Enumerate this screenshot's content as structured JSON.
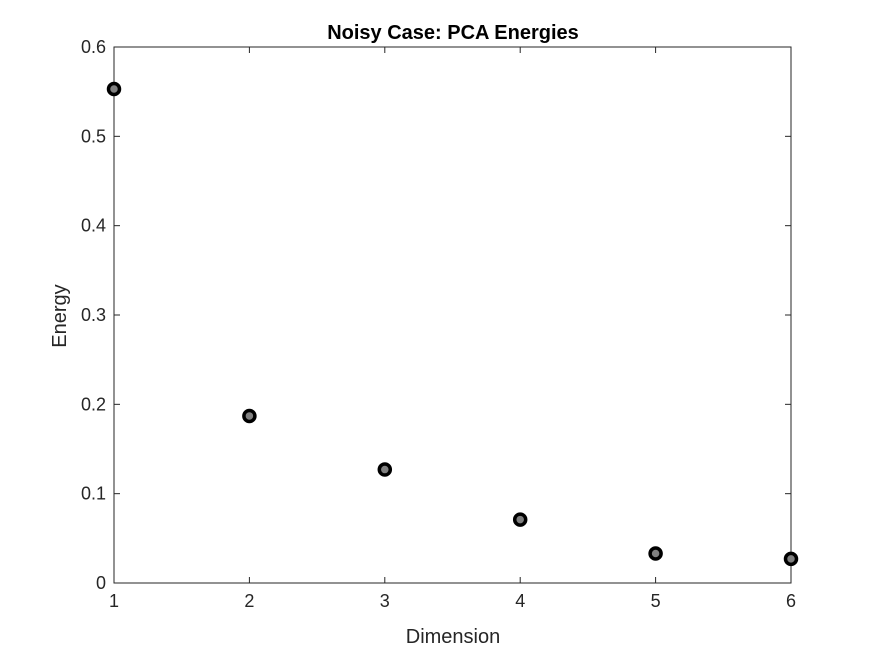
{
  "chart_data": {
    "type": "scatter",
    "title": "Noisy Case: PCA Energies",
    "xlabel": "Dimension",
    "ylabel": "Energy",
    "x": [
      1,
      2,
      3,
      4,
      5,
      6
    ],
    "y": [
      0.553,
      0.187,
      0.127,
      0.071,
      0.033,
      0.027
    ],
    "xlim": [
      1,
      6
    ],
    "ylim": [
      0,
      0.6
    ],
    "xticks": [
      1,
      2,
      3,
      4,
      5,
      6
    ],
    "yticks": [
      0,
      0.1,
      0.2,
      0.3,
      0.4,
      0.5,
      0.6
    ],
    "xtick_labels": [
      "1",
      "2",
      "3",
      "4",
      "5",
      "6"
    ],
    "ytick_labels": [
      "0",
      "0.1",
      "0.2",
      "0.3",
      "0.4",
      "0.5",
      "0.6"
    ],
    "grid": false,
    "box": true,
    "marker": {
      "shape": "circle",
      "edge_color": "#000000",
      "face_color": "#808080"
    },
    "colors": {
      "axes": "#262626",
      "background": "#ffffff"
    }
  }
}
